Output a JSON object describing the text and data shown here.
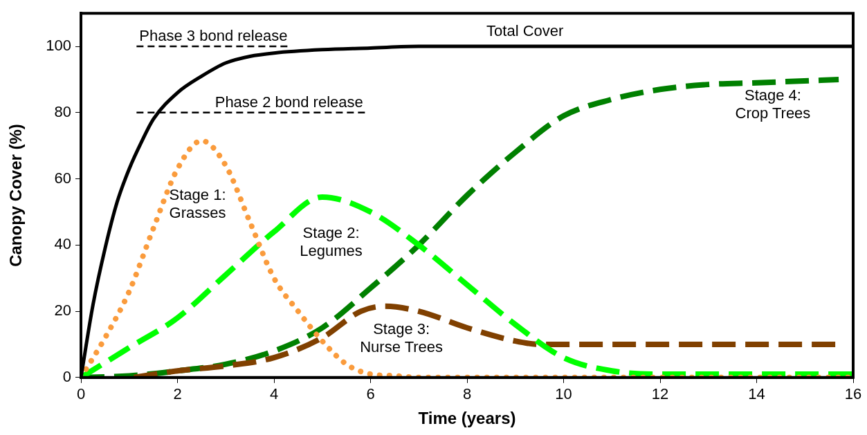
{
  "chart_data": {
    "type": "line",
    "xlabel": "Time (years)",
    "ylabel": "Canopy Cover (%)",
    "xlim": [
      0,
      16
    ],
    "ylim": [
      0,
      110
    ],
    "xticks": [
      0,
      2,
      4,
      6,
      8,
      10,
      12,
      14,
      16
    ],
    "yticks": [
      0,
      20,
      40,
      60,
      80,
      100
    ],
    "grid": false,
    "legend": false,
    "marker": "none",
    "series": [
      {
        "name": "Total Cover",
        "color": "#000000",
        "line_style": "solid",
        "x": [
          0,
          0.25,
          0.5,
          0.75,
          1,
          1.25,
          1.5,
          2,
          2.5,
          3,
          3.5,
          4,
          5,
          6,
          7,
          8,
          10,
          12,
          14,
          16
        ],
        "values": [
          0,
          22,
          39,
          53,
          63,
          71,
          78,
          86,
          91,
          95,
          97,
          98,
          99,
          99.5,
          100,
          100,
          100,
          100,
          100,
          100
        ]
      },
      {
        "name": "Stage 1:\nGrasses",
        "color": "#fa9b3c",
        "line_style": "dotted",
        "x": [
          0,
          0.5,
          1,
          1.5,
          2,
          2.5,
          3,
          3.5,
          4,
          4.5,
          5,
          5.5,
          6,
          6.5,
          7,
          8,
          10,
          12,
          14,
          16
        ],
        "values": [
          0,
          12,
          26,
          45,
          63,
          71.5,
          64,
          47,
          30,
          20,
          11,
          4,
          1,
          0.5,
          0,
          0,
          0,
          0,
          0,
          0
        ]
      },
      {
        "name": "Stage 2:\nLegumes",
        "color": "#00ff00",
        "line_style": "dashed",
        "x": [
          0,
          1,
          2,
          3,
          4,
          5,
          6,
          7,
          8,
          9,
          10,
          11,
          12,
          13,
          14,
          16
        ],
        "values": [
          0,
          9,
          18,
          31,
          44,
          54.5,
          50,
          40,
          28,
          16,
          6,
          2,
          1,
          1,
          1,
          1
        ]
      },
      {
        "name": "Stage 3:\nNurse Trees",
        "color": "#804000",
        "line_style": "dashed",
        "x": [
          1.1,
          2,
          3,
          4,
          5,
          5.8,
          6.3,
          7,
          8,
          9,
          9.5,
          10,
          12,
          14,
          15.7
        ],
        "values": [
          0,
          2,
          3.5,
          6,
          12,
          20,
          21.5,
          20,
          15,
          11,
          10,
          10,
          10,
          10,
          10
        ]
      },
      {
        "name": "Stage 4:\nCrop Trees",
        "color": "#008000",
        "line_style": "dashed",
        "x": [
          0,
          1,
          2,
          3,
          4,
          5,
          6,
          7,
          8,
          9,
          10,
          11,
          12,
          13,
          14,
          15.7
        ],
        "values": [
          0,
          0.5,
          2,
          4,
          8,
          15,
          27,
          40,
          55,
          68,
          79,
          84,
          87,
          88.5,
          89,
          90
        ]
      }
    ],
    "ref_lines": [
      {
        "axis": "y",
        "value": 100,
        "label": "Phase 3 bond release",
        "color": "#000000",
        "line_style": "dashed"
      },
      {
        "axis": "y",
        "value": 80,
        "label": "Phase 2 bond release",
        "color": "#000000",
        "line_style": "dashed"
      }
    ]
  }
}
